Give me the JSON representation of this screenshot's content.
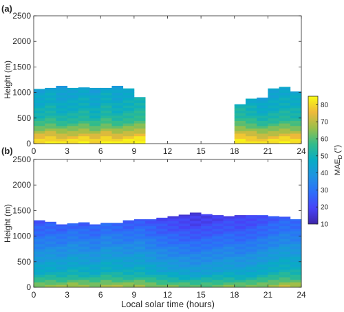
{
  "panels": {
    "a": {
      "label": "(a)"
    },
    "b": {
      "label": "(b)"
    }
  },
  "colorbar": {
    "label_main": "MAE",
    "label_sub": "D",
    "label_unit": "(°)",
    "ticks": [
      "10",
      "20",
      "30",
      "40",
      "50",
      "60",
      "70",
      "80"
    ]
  },
  "chart_data": [
    {
      "type": "heatmap",
      "panel": "(a)",
      "xlabel": "",
      "ylabel": "Height (m)",
      "xlim": [
        0,
        24
      ],
      "ylim": [
        0,
        2500
      ],
      "xticks": [
        0,
        3,
        6,
        9,
        12,
        15,
        18,
        21,
        24
      ],
      "yticks": [
        0,
        500,
        1000,
        1500,
        2000,
        2500
      ],
      "clim": [
        10,
        85
      ],
      "colormap": "parula",
      "bin_width_hours": 1,
      "hour_start": [
        0,
        1,
        2,
        3,
        4,
        5,
        6,
        7,
        8,
        9,
        18,
        19,
        20,
        21,
        22,
        23
      ],
      "top_m": [
        1070,
        1090,
        1130,
        1090,
        1100,
        1090,
        1090,
        1130,
        1080,
        910,
        770,
        880,
        900,
        1080,
        1110,
        1020
      ],
      "mae_profile": {
        "heights_m": [
          0,
          100,
          200,
          300,
          400,
          500,
          700,
          900,
          1150
        ],
        "values": [
          83,
          78,
          70,
          63,
          57,
          52,
          48,
          45,
          42
        ]
      },
      "hour_offset": [
        0,
        2,
        -1,
        0,
        2,
        -1,
        3,
        0,
        2,
        4,
        3,
        1,
        -2,
        0,
        2,
        1
      ]
    },
    {
      "type": "heatmap",
      "panel": "(b)",
      "xlabel": "Local solar time (hours)",
      "ylabel": "Height (m)",
      "xlim": [
        0,
        24
      ],
      "ylim": [
        0,
        2500
      ],
      "xticks": [
        0,
        3,
        6,
        9,
        12,
        15,
        18,
        21,
        24
      ],
      "yticks": [
        0,
        500,
        1000,
        1500,
        2000,
        2500
      ],
      "clim": [
        10,
        85
      ],
      "colormap": "parula",
      "bin_width_hours": 1,
      "hour_start": [
        0,
        1,
        2,
        3,
        4,
        5,
        6,
        7,
        8,
        9,
        10,
        11,
        12,
        13,
        14,
        15,
        16,
        17,
        18,
        19,
        20,
        21,
        22,
        23
      ],
      "top_m": [
        1310,
        1280,
        1230,
        1250,
        1270,
        1230,
        1260,
        1260,
        1310,
        1330,
        1330,
        1360,
        1390,
        1420,
        1460,
        1430,
        1410,
        1390,
        1410,
        1410,
        1410,
        1390,
        1380,
        1330
      ],
      "mae_profile": {
        "heights_m": [
          0,
          100,
          200,
          300,
          500,
          700,
          900,
          1100,
          1300,
          1450
        ],
        "values": [
          65,
          58,
          50,
          45,
          40,
          35,
          30,
          25,
          21,
          18
        ]
      },
      "hour_offset": [
        2,
        3,
        2,
        4,
        3,
        2,
        5,
        4,
        3,
        4,
        2,
        0,
        -1,
        -2,
        -3,
        -2,
        -1,
        0,
        -1,
        0,
        2,
        4,
        6,
        5
      ]
    }
  ]
}
